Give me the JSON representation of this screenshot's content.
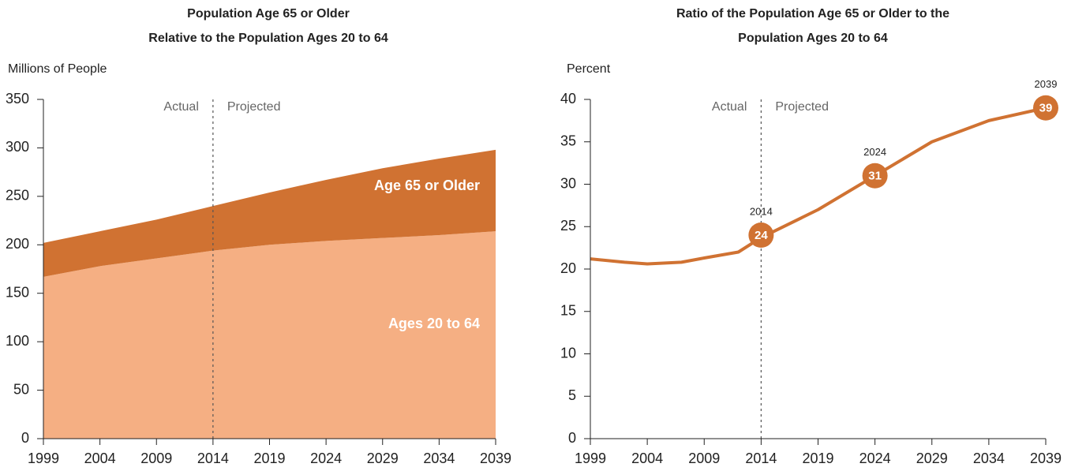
{
  "chart_data": [
    {
      "type": "area",
      "title": "Population Age 65 or Older",
      "subtitle": "Relative to the Population Ages 20 to 64",
      "ylabel": "Millions of People",
      "x": [
        1999,
        2004,
        2009,
        2014,
        2019,
        2024,
        2029,
        2034,
        2039
      ],
      "series": [
        {
          "name": "Ages 20 to 64",
          "color": "#f5af83",
          "values": [
            167,
            178,
            186,
            194,
            200,
            204,
            207,
            210,
            214
          ]
        },
        {
          "name": "Age 65 or Older",
          "color": "#d07232",
          "values": [
            35,
            36,
            40,
            46,
            54,
            63,
            72,
            79,
            84
          ]
        }
      ],
      "xlim": [
        1999,
        2039
      ],
      "xticks": [
        1999,
        2004,
        2009,
        2014,
        2019,
        2024,
        2029,
        2034,
        2039
      ],
      "ylim": [
        0,
        350
      ],
      "yticks": [
        0,
        50,
        100,
        150,
        200,
        250,
        300,
        350
      ],
      "divider": 2014,
      "annotations": [
        "Actual",
        "Projected"
      ],
      "grid": false
    },
    {
      "type": "line",
      "title": "Ratio of the Population Age 65 or Older to the",
      "subtitle": "Population Ages 20 to 64",
      "ylabel": "Percent",
      "x": [
        1999,
        2002,
        2004,
        2007,
        2009,
        2012,
        2014,
        2019,
        2024,
        2029,
        2034,
        2039
      ],
      "series": [
        {
          "name": "Ratio",
          "color": "#d07232",
          "values": [
            21.2,
            20.8,
            20.6,
            20.8,
            21.3,
            22.0,
            23.7,
            27.0,
            31.0,
            35.0,
            37.5,
            39.0
          ]
        }
      ],
      "highlights": [
        {
          "x": 2014,
          "value": 24
        },
        {
          "x": 2024,
          "value": 31
        },
        {
          "x": 2039,
          "value": 39
        }
      ],
      "xlim": [
        1999,
        2039
      ],
      "xticks": [
        1999,
        2004,
        2009,
        2014,
        2019,
        2024,
        2029,
        2034,
        2039
      ],
      "ylim": [
        0,
        40
      ],
      "yticks": [
        0,
        5,
        10,
        15,
        20,
        25,
        30,
        35,
        40
      ],
      "divider": 2014,
      "annotations": [
        "Actual",
        "Projected"
      ],
      "grid": false
    }
  ]
}
